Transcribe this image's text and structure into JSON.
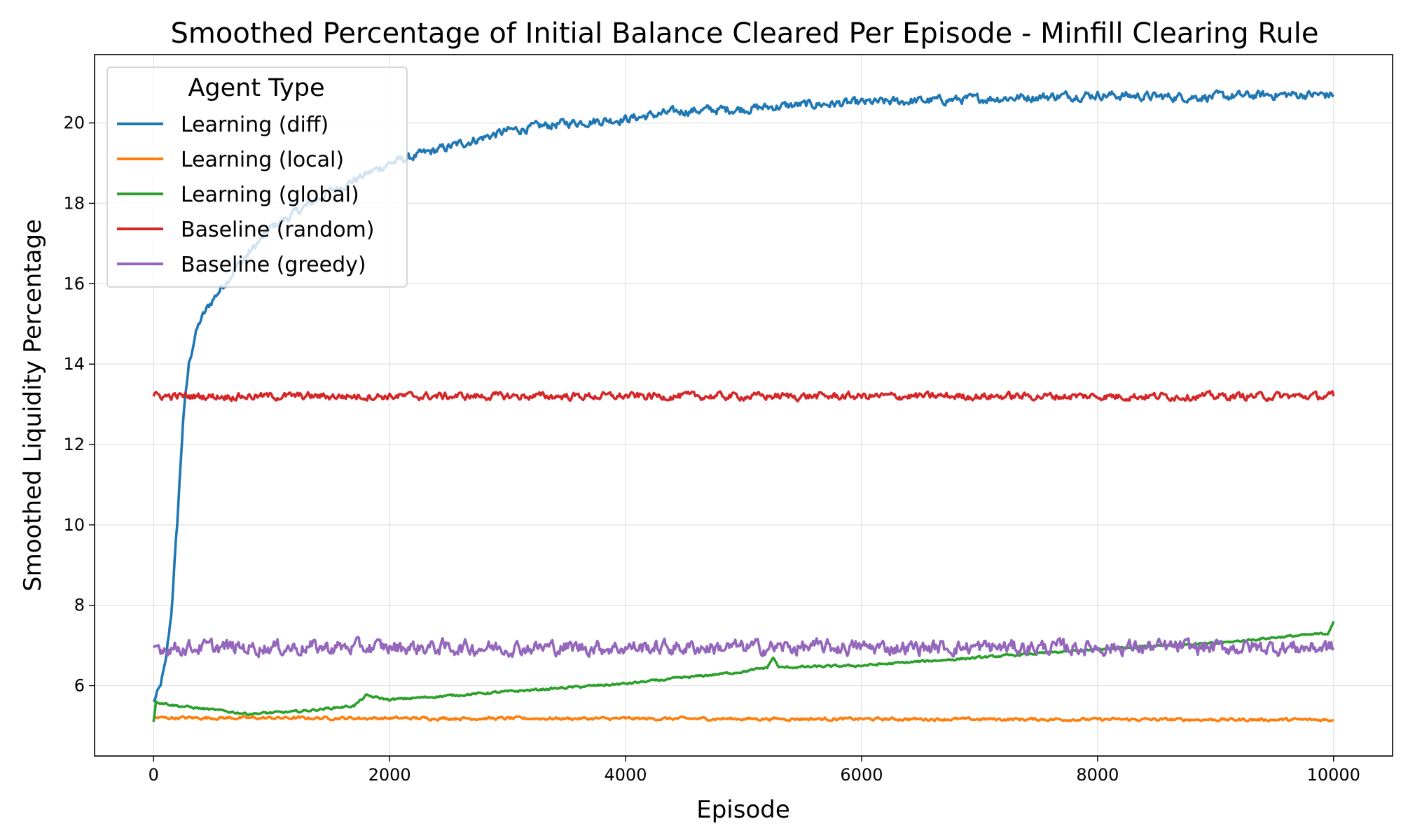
{
  "chart_data": {
    "type": "line",
    "title": "Smoothed Percentage of Initial Balance Cleared Per Episode - Minfill Clearing Rule",
    "xlabel": "Episode",
    "ylabel": "Smoothed Liquidity Percentage",
    "xlim": [
      -500,
      10500
    ],
    "ylim": [
      4.25,
      21.7
    ],
    "x_ticks": [
      0,
      2000,
      4000,
      6000,
      8000,
      10000
    ],
    "y_ticks": [
      6,
      8,
      10,
      12,
      14,
      16,
      18,
      20
    ],
    "grid": true,
    "legend": {
      "title": "Agent Type",
      "placement": "top-left"
    },
    "series": [
      {
        "name": "Learning (diff)",
        "color": "#1f77b4",
        "noise": 0.12,
        "points": [
          [
            0,
            5.6
          ],
          [
            50,
            5.9
          ],
          [
            100,
            6.5
          ],
          [
            150,
            7.8
          ],
          [
            200,
            10.0
          ],
          [
            250,
            12.6
          ],
          [
            300,
            14.0
          ],
          [
            350,
            14.7
          ],
          [
            400,
            15.1
          ],
          [
            500,
            15.6
          ],
          [
            700,
            16.4
          ],
          [
            1000,
            17.4
          ],
          [
            1500,
            18.3
          ],
          [
            2000,
            19.0
          ],
          [
            2500,
            19.4
          ],
          [
            3000,
            19.8
          ],
          [
            3500,
            20.0
          ],
          [
            4000,
            20.1
          ],
          [
            4500,
            20.3
          ],
          [
            5000,
            20.35
          ],
          [
            5500,
            20.45
          ],
          [
            6000,
            20.5
          ],
          [
            6500,
            20.55
          ],
          [
            7000,
            20.6
          ],
          [
            7500,
            20.65
          ],
          [
            8000,
            20.7
          ],
          [
            8500,
            20.65
          ],
          [
            9000,
            20.65
          ],
          [
            9500,
            20.7
          ],
          [
            10000,
            20.7
          ]
        ]
      },
      {
        "name": "Learning (local)",
        "color": "#ff7f0e",
        "noise": 0.04,
        "points": [
          [
            0,
            5.2
          ],
          [
            10000,
            5.15
          ]
        ]
      },
      {
        "name": "Learning (global)",
        "color": "#2ca02c",
        "noise": 0.03,
        "points": [
          [
            0,
            5.1
          ],
          [
            20,
            5.6
          ],
          [
            200,
            5.5
          ],
          [
            500,
            5.4
          ],
          [
            800,
            5.3
          ],
          [
            1200,
            5.35
          ],
          [
            1700,
            5.5
          ],
          [
            1800,
            5.75
          ],
          [
            2000,
            5.65
          ],
          [
            2500,
            5.75
          ],
          [
            3000,
            5.85
          ],
          [
            3500,
            5.95
          ],
          [
            4000,
            6.05
          ],
          [
            4500,
            6.2
          ],
          [
            5000,
            6.35
          ],
          [
            5200,
            6.45
          ],
          [
            5250,
            6.7
          ],
          [
            5300,
            6.45
          ],
          [
            6000,
            6.5
          ],
          [
            6500,
            6.6
          ],
          [
            7000,
            6.7
          ],
          [
            7500,
            6.8
          ],
          [
            8000,
            6.9
          ],
          [
            8500,
            7.0
          ],
          [
            9000,
            7.05
          ],
          [
            9500,
            7.2
          ],
          [
            9950,
            7.3
          ],
          [
            10000,
            7.6
          ]
        ]
      },
      {
        "name": "Baseline (random)",
        "color": "#d62728",
        "noise": 0.1,
        "points": [
          [
            0,
            13.2
          ],
          [
            10000,
            13.2
          ]
        ]
      },
      {
        "name": "Baseline (greedy)",
        "color": "#9467bd",
        "noise": 0.2,
        "points": [
          [
            0,
            6.95
          ],
          [
            10000,
            6.95
          ]
        ]
      }
    ]
  }
}
